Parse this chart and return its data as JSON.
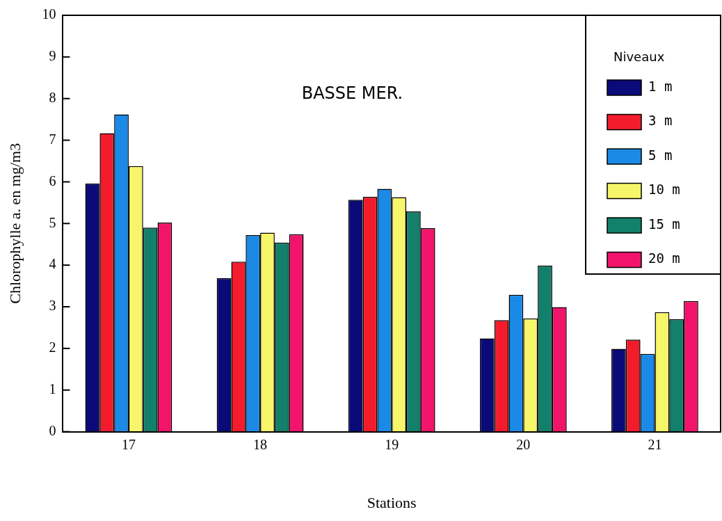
{
  "chart_data": {
    "type": "bar",
    "title": "BASSE MER.",
    "xlabel": "Stations",
    "ylabel": "Chlorophylle a. en mg/m3",
    "legend_title": "Niveaux",
    "legend": "top right",
    "grid": false,
    "categories": [
      "17",
      "18",
      "19",
      "20",
      "21"
    ],
    "ylim": [
      0,
      10
    ],
    "yticks": [
      0,
      1,
      2,
      3,
      4,
      5,
      6,
      7,
      8,
      9,
      10
    ],
    "series": [
      {
        "name": "1 m",
        "color": "#0a0a78",
        "values": [
          5.96,
          3.69,
          5.57,
          2.24,
          1.99
        ]
      },
      {
        "name": "3 m",
        "color": "#f21c2c",
        "values": [
          7.17,
          4.08,
          5.64,
          2.68,
          2.21
        ]
      },
      {
        "name": "5 m",
        "color": "#1a8ae6",
        "values": [
          7.62,
          4.72,
          5.83,
          3.29,
          1.87
        ]
      },
      {
        "name": "10 m",
        "color": "#f7f56a",
        "values": [
          6.38,
          4.78,
          5.63,
          2.72,
          2.87
        ]
      },
      {
        "name": "15 m",
        "color": "#12806a",
        "values": [
          4.9,
          4.54,
          5.29,
          3.99,
          2.7
        ]
      },
      {
        "name": "20 m",
        "color": "#f2146a",
        "values": [
          5.02,
          4.74,
          4.89,
          2.99,
          3.14
        ]
      }
    ]
  }
}
